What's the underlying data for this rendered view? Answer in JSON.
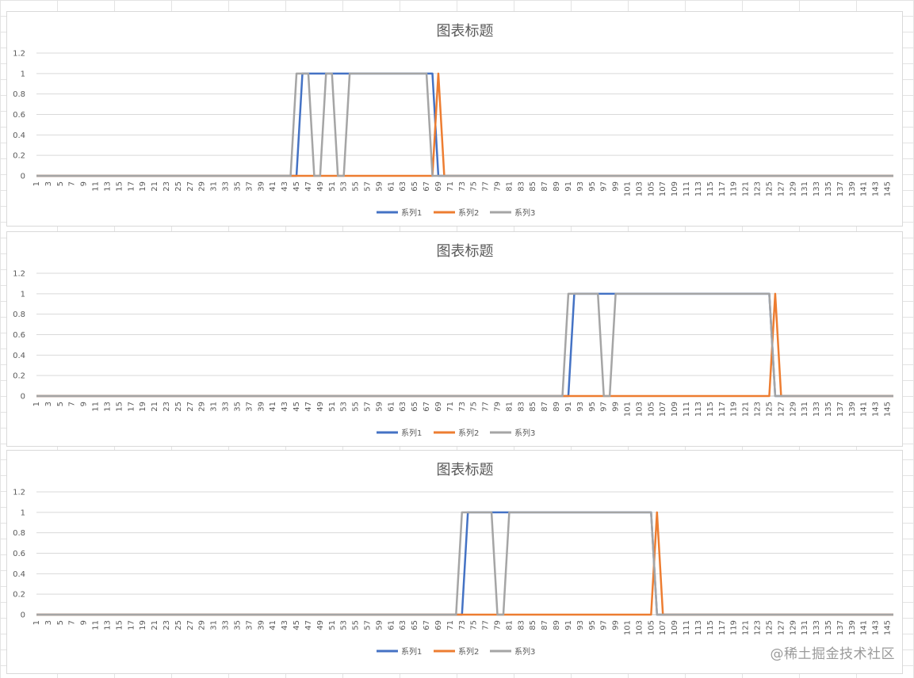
{
  "chart_data": [
    {
      "type": "line",
      "title": "图表标题",
      "xlabel": "",
      "ylabel": "",
      "x_range": [
        1,
        146
      ],
      "x_tick_labels": [
        1,
        3,
        5,
        7,
        9,
        11,
        13,
        15,
        17,
        19,
        21,
        23,
        25,
        27,
        29,
        31,
        33,
        35,
        37,
        39,
        41,
        43,
        45,
        47,
        49,
        51,
        53,
        55,
        57,
        59,
        61,
        63,
        65,
        67,
        69,
        71,
        73,
        75,
        77,
        79,
        81,
        83,
        85,
        87,
        89,
        91,
        93,
        95,
        97,
        99,
        101,
        103,
        105,
        107,
        109,
        111,
        113,
        115,
        117,
        119,
        121,
        123,
        125,
        127,
        129,
        131,
        133,
        135,
        137,
        139,
        141,
        143,
        145
      ],
      "y_ticks": [
        "0",
        "0.2",
        "0.4",
        "0.6",
        "0.8",
        "1",
        "1.2"
      ],
      "ylim": [
        0,
        1.2
      ],
      "grid": true,
      "legend": "bottom",
      "series": [
        {
          "name": "系列1",
          "color": "#4472C4",
          "segments": [
            [
              45,
              46,
              68,
              69
            ]
          ]
        },
        {
          "name": "系列2",
          "color": "#ED7D31",
          "segments": [
            [
              68,
              69,
              69,
              70
            ]
          ]
        },
        {
          "name": "系列3",
          "color": "#A5A5A5",
          "segments": [
            [
              44,
              45,
              47,
              48
            ],
            [
              49,
              50,
              51,
              52
            ],
            [
              53,
              54,
              67,
              68
            ]
          ]
        }
      ]
    },
    {
      "type": "line",
      "title": "图表标题",
      "xlabel": "",
      "ylabel": "",
      "x_range": [
        1,
        146
      ],
      "x_tick_labels": [
        1,
        3,
        5,
        7,
        9,
        11,
        13,
        15,
        17,
        19,
        21,
        23,
        25,
        27,
        29,
        31,
        33,
        35,
        37,
        39,
        41,
        43,
        45,
        47,
        49,
        51,
        53,
        55,
        57,
        59,
        61,
        63,
        65,
        67,
        69,
        71,
        73,
        75,
        77,
        79,
        81,
        83,
        85,
        87,
        89,
        91,
        93,
        95,
        97,
        99,
        101,
        103,
        105,
        107,
        109,
        111,
        113,
        115,
        117,
        119,
        121,
        123,
        125,
        127,
        129,
        131,
        133,
        135,
        137,
        139,
        141,
        143,
        145
      ],
      "y_ticks": [
        "0",
        "0.2",
        "0.4",
        "0.6",
        "0.8",
        "1",
        "1.2"
      ],
      "ylim": [
        0,
        1.2
      ],
      "grid": true,
      "legend": "bottom",
      "series": [
        {
          "name": "系列1",
          "color": "#4472C4",
          "segments": [
            [
              91,
              92,
              125,
              126
            ]
          ]
        },
        {
          "name": "系列2",
          "color": "#ED7D31",
          "segments": [
            [
              125,
              126,
              126,
              127
            ]
          ]
        },
        {
          "name": "系列3",
          "color": "#A5A5A5",
          "segments": [
            [
              90,
              91,
              96,
              97
            ],
            [
              98,
              99,
              125,
              126
            ]
          ]
        }
      ]
    },
    {
      "type": "line",
      "title": "图表标题",
      "xlabel": "",
      "ylabel": "",
      "x_range": [
        1,
        146
      ],
      "x_tick_labels": [
        1,
        3,
        5,
        7,
        9,
        11,
        13,
        15,
        17,
        19,
        21,
        23,
        25,
        27,
        29,
        31,
        33,
        35,
        37,
        39,
        41,
        43,
        45,
        47,
        49,
        51,
        53,
        55,
        57,
        59,
        61,
        63,
        65,
        67,
        69,
        71,
        73,
        75,
        77,
        79,
        81,
        83,
        85,
        87,
        89,
        91,
        93,
        95,
        97,
        99,
        101,
        103,
        105,
        107,
        109,
        111,
        113,
        115,
        117,
        119,
        121,
        123,
        125,
        127,
        129,
        131,
        133,
        135,
        137,
        139,
        141,
        143,
        145
      ],
      "y_ticks": [
        "0",
        "0.2",
        "0.4",
        "0.6",
        "0.8",
        "1",
        "1.2"
      ],
      "ylim": [
        0,
        1.2
      ],
      "grid": true,
      "legend": "bottom",
      "series": [
        {
          "name": "系列1",
          "color": "#4472C4",
          "segments": [
            [
              73,
              74,
              105,
              106
            ]
          ]
        },
        {
          "name": "系列2",
          "color": "#ED7D31",
          "segments": [
            [
              105,
              106,
              106,
              107
            ]
          ]
        },
        {
          "name": "系列3",
          "color": "#A5A5A5",
          "segments": [
            [
              72,
              73,
              78,
              79
            ],
            [
              80,
              81,
              105,
              106
            ]
          ]
        }
      ]
    }
  ],
  "watermark": "@稀土掘金技术社区"
}
